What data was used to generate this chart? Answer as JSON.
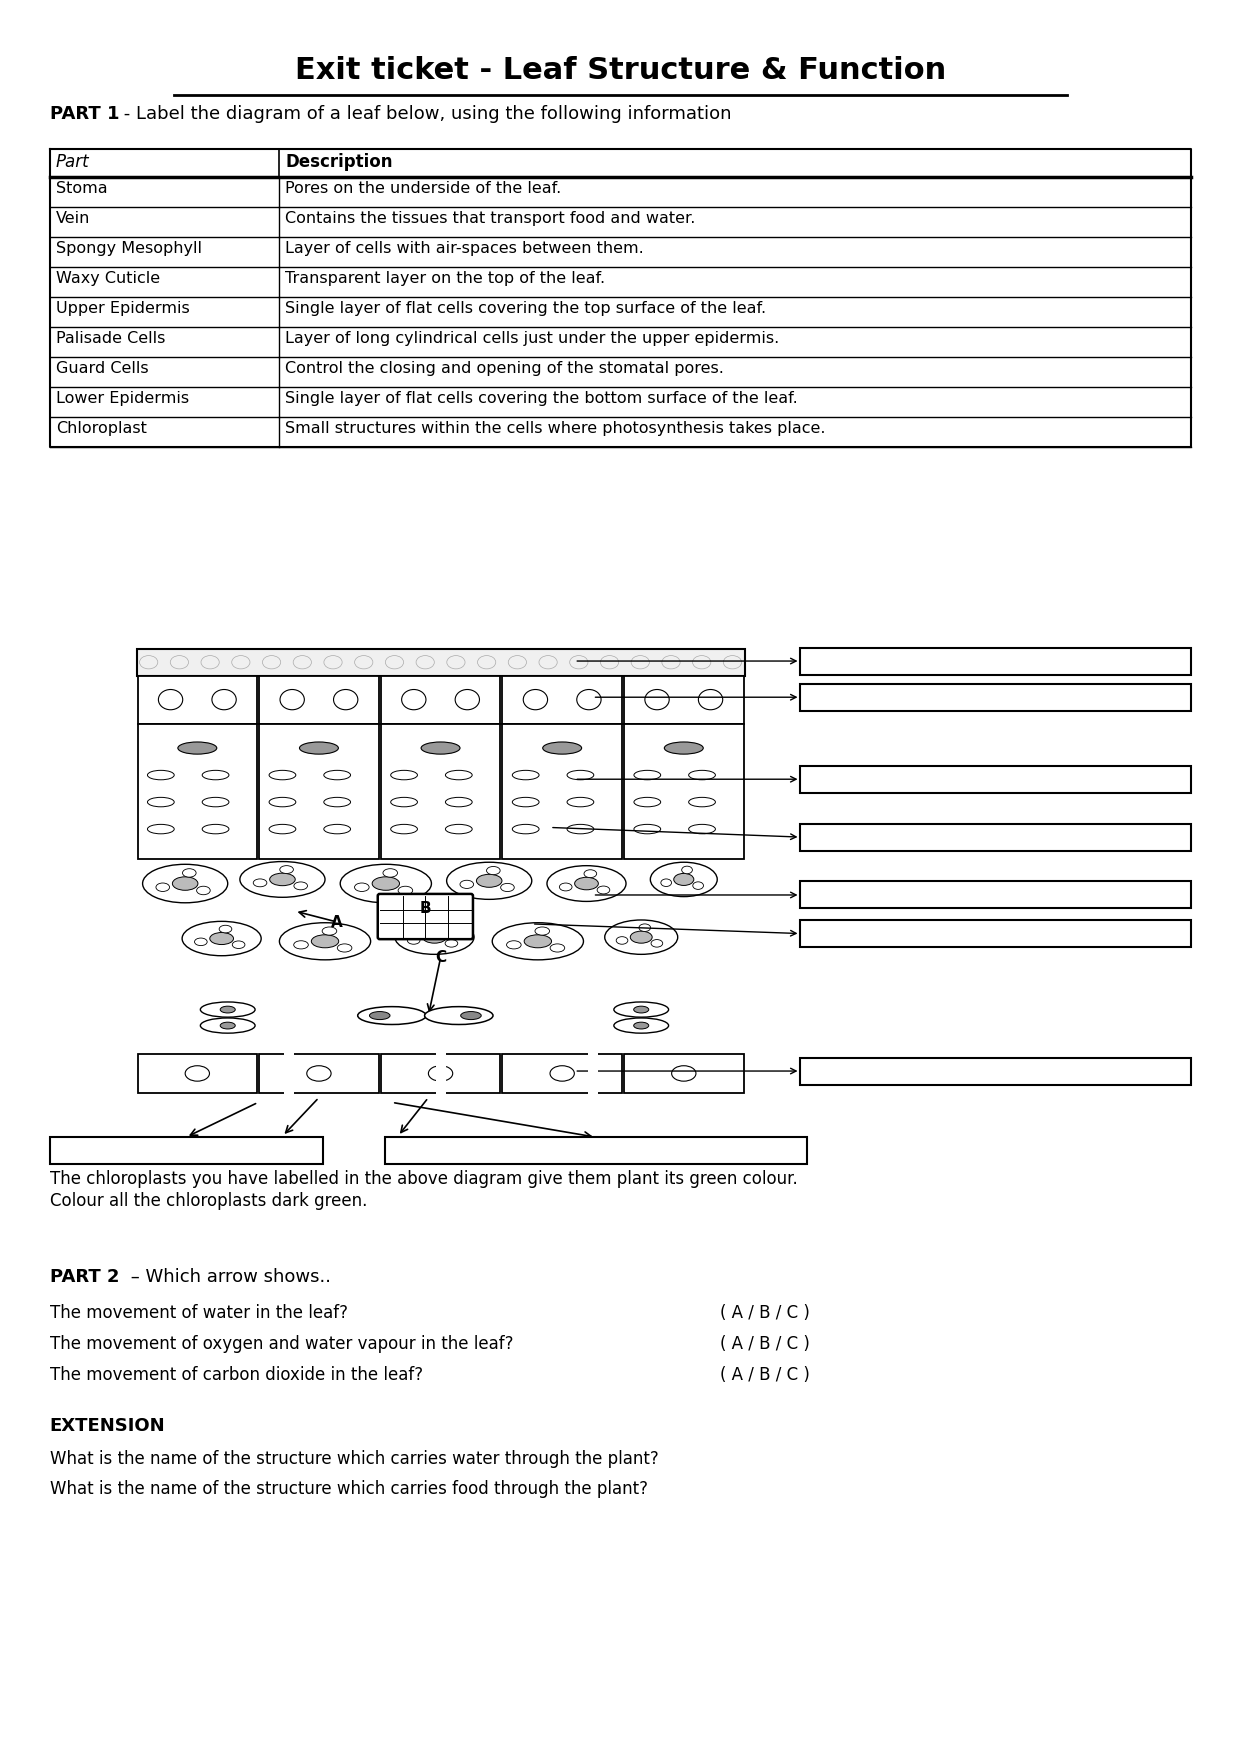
{
  "title": "Exit ticket - Leaf Structure & Function",
  "part1_label": "PART 1",
  "part1_text": " - Label the diagram of a leaf below, using the following information",
  "table_headers": [
    "Part",
    "Description"
  ],
  "table_rows": [
    [
      "Stoma",
      "Pores on the underside of the leaf."
    ],
    [
      "Vein",
      "Contains the tissues that transport food and water."
    ],
    [
      "Spongy Mesophyll",
      "Layer of cells with air-spaces between them."
    ],
    [
      "Waxy Cuticle",
      "Transparent layer on the top of the leaf."
    ],
    [
      "Upper Epidermis",
      "Single layer of flat cells covering the top surface of the leaf."
    ],
    [
      "Palisade Cells",
      "Layer of long cylindrical cells just under the upper epidermis."
    ],
    [
      "Guard Cells",
      "Control the closing and opening of the stomatal pores."
    ],
    [
      "Lower Epidermis",
      "Single layer of flat cells covering the bottom surface of the leaf."
    ],
    [
      "Chloroplast",
      "Small structures within the cells where photosynthesis takes place."
    ]
  ],
  "chloroplast_note_line1": "The chloroplasts you have labelled in the above diagram give them plant its green colour.",
  "chloroplast_note_line2": "Colour all the chloroplasts dark green.",
  "part2_label": "PART 2",
  "part2_text": " – Which arrow shows..",
  "part2_questions": [
    [
      "The movement of water in the leaf?",
      "( A / B / C )"
    ],
    [
      "The movement of oxygen and water vapour in the leaf?",
      "( A / B / C )"
    ],
    [
      "The movement of carbon dioxide in the leaf?",
      "( A / B / C )"
    ]
  ],
  "extension_label": "EXTENSION",
  "extension_questions": [
    "What is the name of the structure which carries water through the plant?",
    "What is the name of the structure which carries food through the plant?"
  ],
  "bg_color": "#ffffff"
}
